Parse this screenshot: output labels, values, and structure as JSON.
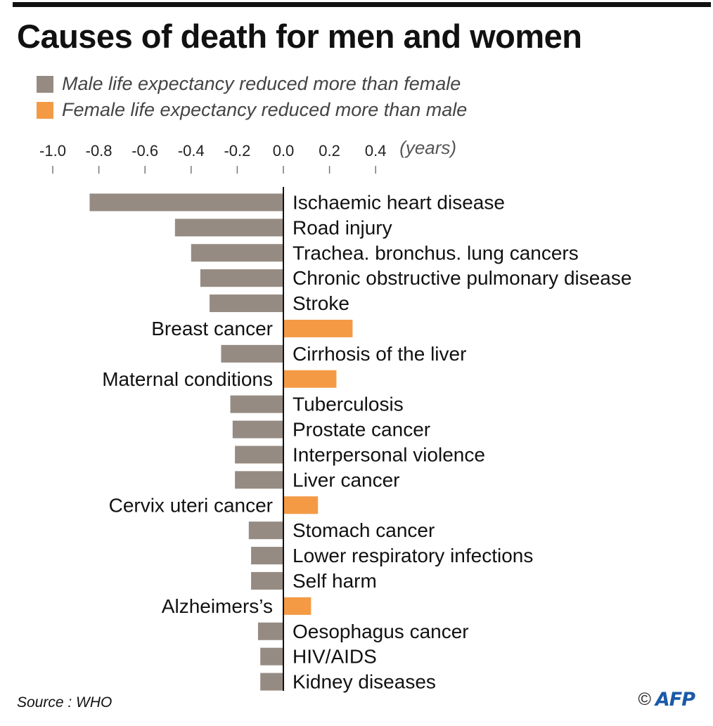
{
  "title": "Causes of death for men and women",
  "colors": {
    "male": "#968b82",
    "female": "#f49a45"
  },
  "legend": [
    {
      "label": "Male life expectancy reduced more than female",
      "color": "#968b82"
    },
    {
      "label": "Female life expectancy reduced more than male",
      "color": "#f49a45"
    }
  ],
  "source": "Source : WHO",
  "credit": {
    "copyright": "©",
    "agency": "AFP"
  },
  "chart_data": {
    "type": "bar",
    "orientation": "horizontal",
    "unit_label": "(years)",
    "xlim": [
      -1.0,
      0.4
    ],
    "x_ticks": [
      -1.0,
      -0.8,
      -0.6,
      -0.4,
      -0.2,
      0.0,
      0.2,
      0.4
    ],
    "x_tick_labels": [
      "-1.0",
      "-0.8",
      "-0.6",
      "-0.4",
      "-0.2",
      "0.0",
      "0.2",
      "0.4"
    ],
    "grid": false,
    "legend_position": "top-left",
    "categories": [
      "Ischaemic heart disease",
      "Road injury",
      "Trachea. bronchus. lung cancers",
      "Chronic obstructive pulmonary disease",
      "Stroke",
      "Breast cancer",
      "Cirrhosis of the liver",
      "Maternal conditions",
      "Tuberculosis",
      "Prostate cancer",
      "Interpersonal violence",
      "Liver cancer",
      "Cervix uteri cancer",
      "Stomach cancer",
      "Lower respiratory infections",
      "Self harm",
      "Alzheimers’s",
      "Oesophagus cancer",
      "HIV/AIDS",
      "Kidney diseases"
    ],
    "values": [
      -0.84,
      -0.47,
      -0.4,
      -0.36,
      -0.32,
      0.3,
      -0.27,
      0.23,
      -0.23,
      -0.22,
      -0.21,
      -0.21,
      0.15,
      -0.15,
      -0.14,
      -0.14,
      0.12,
      -0.11,
      -0.1,
      -0.1
    ]
  }
}
